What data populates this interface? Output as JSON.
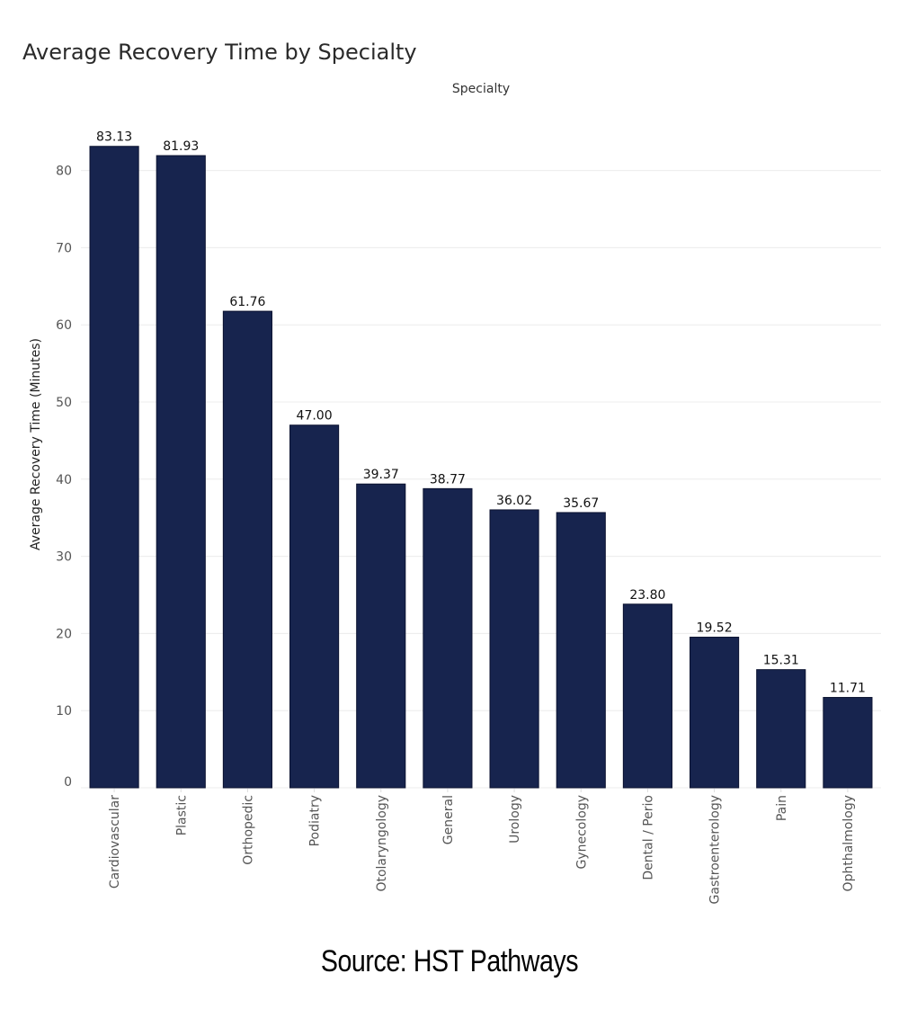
{
  "chart_data": {
    "type": "bar",
    "title": "Average Recovery Time by Specialty",
    "facet_label": "Specialty",
    "xlabel": "",
    "ylabel": "Average Recovery Time (Minutes)",
    "categories": [
      "Cardiovascular",
      "Plastic",
      "Orthopedic",
      "Podiatry",
      "Otolaryngology",
      "General",
      "Urology",
      "Gynecology",
      "Dental / Perio",
      "Gastroenterology",
      "Pain",
      "Ophthalmology"
    ],
    "values": [
      83.13,
      81.93,
      61.76,
      47.0,
      39.37,
      38.77,
      36.02,
      35.67,
      23.8,
      19.52,
      15.31,
      11.71
    ],
    "data_labels": [
      "83.13",
      "81.93",
      "61.76",
      "47.00",
      "39.37",
      "38.77",
      "36.02",
      "35.67",
      "23.80",
      "19.52",
      "15.31",
      "11.71"
    ],
    "ylim": [
      0,
      88
    ],
    "yticks": [
      0,
      10,
      20,
      30,
      40,
      50,
      60,
      70,
      80
    ],
    "grid": true,
    "bar_color": "#17244e",
    "legend": "none"
  },
  "source": "Source: HST Pathways"
}
